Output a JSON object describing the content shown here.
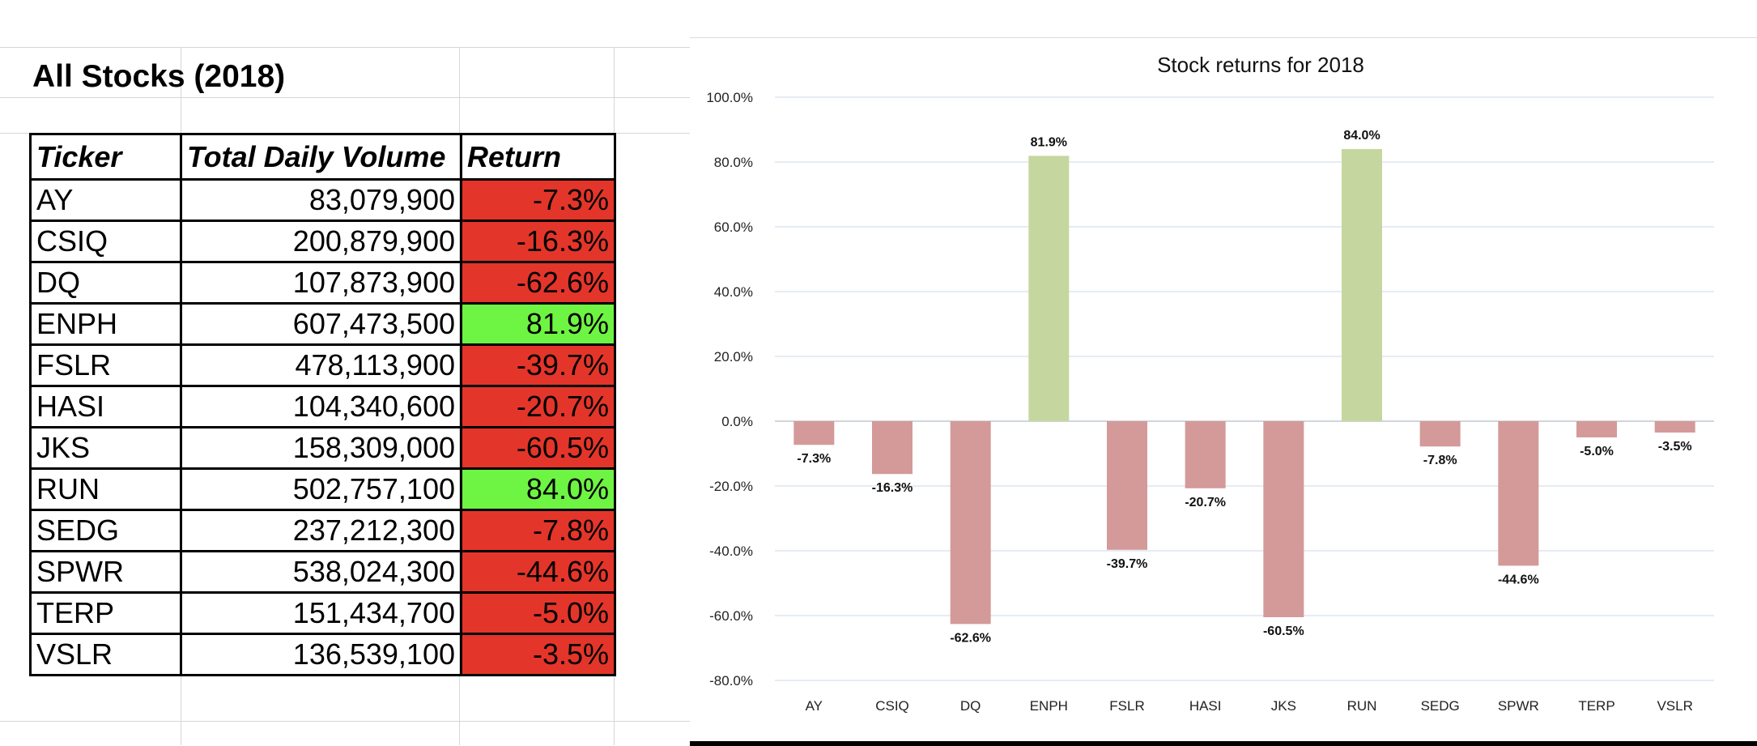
{
  "table": {
    "title": "All Stocks (2018)",
    "headers": [
      "Ticker",
      "Total Daily Volume",
      "Return"
    ],
    "rows": [
      {
        "ticker": "AY",
        "volume": "83,079,900",
        "ret": "-7.3%",
        "status": "neg"
      },
      {
        "ticker": "CSIQ",
        "volume": "200,879,900",
        "ret": "-16.3%",
        "status": "neg"
      },
      {
        "ticker": "DQ",
        "volume": "107,873,900",
        "ret": "-62.6%",
        "status": "neg"
      },
      {
        "ticker": "ENPH",
        "volume": "607,473,500",
        "ret": "81.9%",
        "status": "pos"
      },
      {
        "ticker": "FSLR",
        "volume": "478,113,900",
        "ret": "-39.7%",
        "status": "neg"
      },
      {
        "ticker": "HASI",
        "volume": "104,340,600",
        "ret": "-20.7%",
        "status": "neg"
      },
      {
        "ticker": "JKS",
        "volume": "158,309,000",
        "ret": "-60.5%",
        "status": "neg"
      },
      {
        "ticker": "RUN",
        "volume": "502,757,100",
        "ret": "84.0%",
        "status": "pos"
      },
      {
        "ticker": "SEDG",
        "volume": "237,212,300",
        "ret": "-7.8%",
        "status": "neg"
      },
      {
        "ticker": "SPWR",
        "volume": "538,024,300",
        "ret": "-44.6%",
        "status": "neg"
      },
      {
        "ticker": "TERP",
        "volume": "151,434,700",
        "ret": "-5.0%",
        "status": "neg"
      },
      {
        "ticker": "VSLR",
        "volume": "136,539,100",
        "ret": "-3.5%",
        "status": "neg"
      }
    ],
    "colors": {
      "negative_fill": "#e4352a",
      "positive_fill": "#6ef442"
    }
  },
  "chart_data": {
    "type": "bar",
    "title": "Stock returns for 2018",
    "xlabel": "",
    "ylabel": "",
    "categories": [
      "AY",
      "CSIQ",
      "DQ",
      "ENPH",
      "FSLR",
      "HASI",
      "JKS",
      "RUN",
      "SEDG",
      "SPWR",
      "TERP",
      "VSLR"
    ],
    "values": [
      -7.3,
      -16.3,
      -62.6,
      81.9,
      -39.7,
      -20.7,
      -60.5,
      84.0,
      -7.8,
      -44.6,
      -5.0,
      -3.5
    ],
    "data_labels": [
      "-7.3%",
      "-16.3%",
      "-62.6%",
      "81.9%",
      "-39.7%",
      "-20.7%",
      "-60.5%",
      "84.0%",
      "-7.8%",
      "-44.6%",
      "-5.0%",
      "-3.5%"
    ],
    "ylim": [
      -80,
      100
    ],
    "yticks": [
      100,
      80,
      60,
      40,
      20,
      0,
      -20,
      -40,
      -60,
      -80
    ],
    "ytick_labels": [
      "100.0%",
      "80.0%",
      "60.0%",
      "40.0%",
      "20.0%",
      "0.0%",
      "-20.0%",
      "-40.0%",
      "-60.0%",
      "-80.0%"
    ],
    "grid": true,
    "legend": "none",
    "colors": {
      "positive": "#c5d79f",
      "negative": "#d39a99",
      "grid": "#dde6f0"
    }
  }
}
